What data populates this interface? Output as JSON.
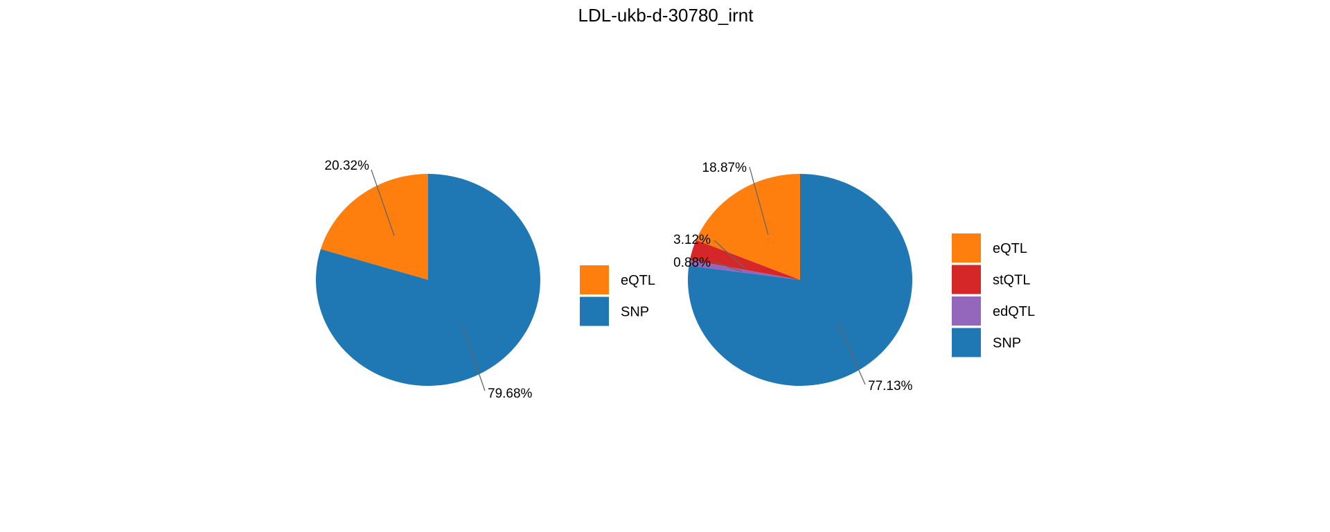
{
  "title": "LDL-ukb-d-30780_irnt",
  "chart_data": [
    {
      "type": "pie",
      "title": "LDL-ukb-d-30780_irnt",
      "legend_position": "right",
      "slices": [
        {
          "name": "eQTL",
          "value": 20.32,
          "label": "20.32%",
          "color": "#FF7F0E"
        },
        {
          "name": "SNP",
          "value": 79.68,
          "label": "79.68%",
          "color": "#1F77B4"
        }
      ]
    },
    {
      "type": "pie",
      "legend_position": "right",
      "slices": [
        {
          "name": "eQTL",
          "value": 18.87,
          "label": "18.87%",
          "color": "#FF7F0E"
        },
        {
          "name": "stQTL",
          "value": 3.12,
          "label": "3.12%",
          "color": "#D62728"
        },
        {
          "name": "edQTL",
          "value": 0.88,
          "label": "0.88%",
          "color": "#9467BD"
        },
        {
          "name": "SNP",
          "value": 77.13,
          "label": "77.13%",
          "color": "#1F77B4"
        }
      ]
    }
  ]
}
